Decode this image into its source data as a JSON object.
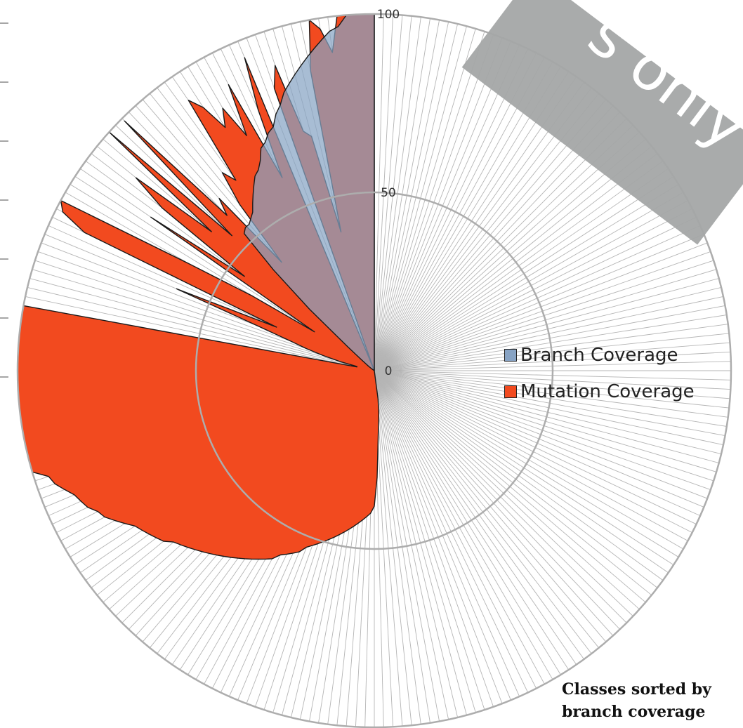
{
  "chart_data": {
    "type": "radar",
    "subtype": "filled polar area, one spoke per class",
    "radial_axis": {
      "min": 0,
      "max": 100,
      "ticks": [
        "0",
        "50",
        "100"
      ]
    },
    "spokes": 240,
    "grid": true,
    "legend": {
      "placement": "right",
      "entries": [
        "Branch Coverage",
        "Mutation Coverage"
      ]
    },
    "annotation": [
      "Classes sorted by",
      "branch coverage"
    ],
    "series": [
      {
        "name": "Branch Coverage",
        "color": "#87a3c4",
        "description": "per-class branch coverage (%) for the first 38 spokes (counter-clockwise from top); remaining classes 0",
        "values": [
          100,
          100,
          100,
          100,
          97,
          96,
          94,
          92,
          90,
          88,
          86,
          84,
          82,
          79,
          77,
          74,
          73,
          71,
          70,
          67,
          65,
          64,
          62,
          60,
          58,
          56,
          55,
          54,
          54,
          53,
          40,
          25,
          10,
          5,
          3,
          2,
          1,
          0
        ]
      },
      {
        "name": "Mutation Coverage",
        "color": "#f24a1f",
        "description": "per-class mutation coverage (%) for spokes 0-126; remaining classes 0",
        "values": [
          100,
          100,
          100,
          100,
          100,
          90,
          97,
          100,
          86,
          40,
          68,
          70,
          90,
          84,
          0,
          95,
          80,
          60,
          90,
          75,
          85,
          80,
          88,
          92,
          66,
          70,
          60,
          40,
          65,
          60,
          99,
          55,
          100,
          60,
          86,
          75,
          45,
          76,
          20,
          40,
          60,
          100,
          98,
          90,
          30,
          60,
          35,
          25,
          20,
          15,
          10,
          5,
          5,
          100,
          100,
          100,
          100,
          100,
          100,
          100,
          100,
          100,
          100,
          100,
          100,
          100,
          100,
          100,
          100,
          100,
          100,
          100,
          96,
          95,
          93,
          91,
          90,
          89,
          87,
          86,
          84,
          82,
          80,
          79,
          78,
          77,
          76,
          74,
          73,
          72,
          71,
          70,
          69,
          68,
          67,
          66,
          65,
          64,
          63,
          62,
          61,
          60,
          58,
          57,
          56,
          55,
          53,
          52,
          51,
          50,
          49,
          48,
          47,
          46,
          45,
          44,
          43,
          42,
          41,
          40,
          38,
          30,
          20,
          15,
          12,
          8,
          0
        ]
      }
    ]
  },
  "watermark": "s only"
}
